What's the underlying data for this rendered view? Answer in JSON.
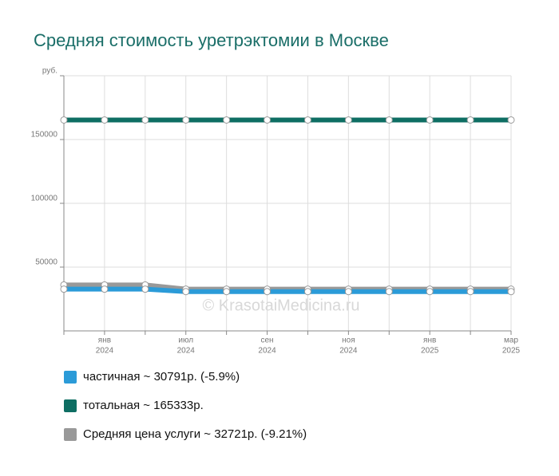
{
  "chart_data": {
    "type": "line",
    "title": "Средняя стоимость уретрэктомии в Москве",
    "watermark": "© KrasotaiMedicina.ru",
    "categories": [
      null,
      [
        "янв",
        "2024"
      ],
      null,
      [
        "июл",
        "2024"
      ],
      null,
      [
        "сен",
        "2024"
      ],
      null,
      [
        "ноя",
        "2024"
      ],
      null,
      [
        "янв",
        "2025"
      ],
      null,
      [
        "мар",
        "2025"
      ]
    ],
    "series": [
      {
        "name": "частичная ~ 30791р. (-5.9%)",
        "color": "#2b9bd8",
        "values": [
          32720,
          32720,
          32720,
          30791,
          30791,
          30791,
          30791,
          30791,
          30791,
          30791,
          30791,
          30791
        ]
      },
      {
        "name": "тотальная ~ 165333р.",
        "color": "#0e6e63",
        "values": [
          165333,
          165333,
          165333,
          165333,
          165333,
          165333,
          165333,
          165333,
          165333,
          165333,
          165333,
          165333
        ]
      },
      {
        "name": "Средняя цена услуги ~ 32721р. (-9.21%)",
        "color": "#999999",
        "values": [
          36040,
          36040,
          36040,
          32721,
          32721,
          32721,
          32721,
          32721,
          32721,
          32721,
          32721,
          32721
        ]
      }
    ],
    "ylim": [
      0,
      200000
    ],
    "yticks": [
      50000,
      100000,
      150000,
      {
        "value": 200000,
        "label": "руб."
      }
    ],
    "grid": true
  }
}
